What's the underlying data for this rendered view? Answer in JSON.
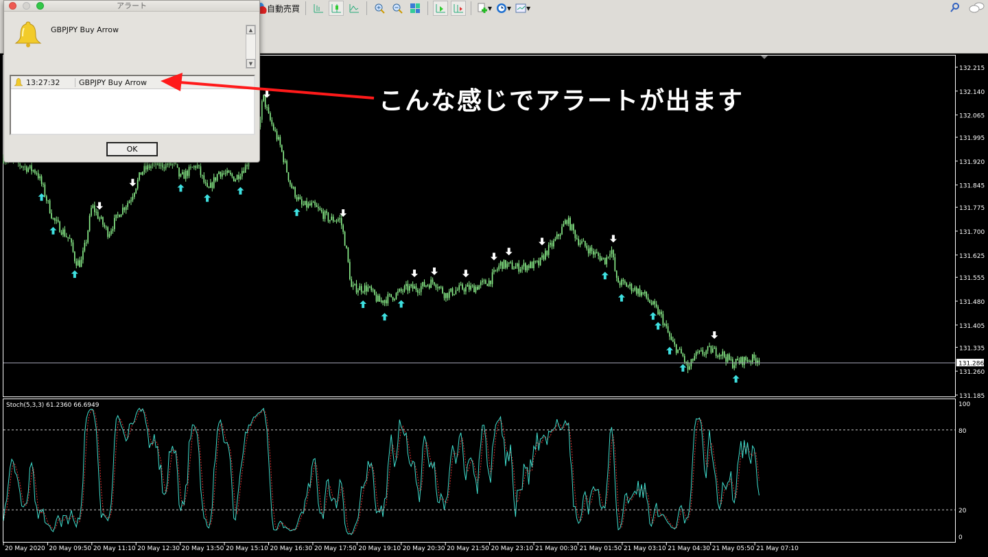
{
  "toolbar": {
    "auto_trade_label": "自動売買",
    "buttons": [
      "bar-chart",
      "candlestick-chart",
      "line-chart",
      "zoom-in",
      "zoom-out",
      "tile-windows",
      "chart-shift",
      "auto-scroll",
      "indicators",
      "periods",
      "templates"
    ]
  },
  "dialog": {
    "title": "アラート",
    "message": "GBPJPY Buy Arrow",
    "list": [
      {
        "time": "13:27:32",
        "text": "GBPJPY Buy Arrow"
      }
    ],
    "ok_label": "OK"
  },
  "annotation": {
    "text": "こんな感じでアラートが出ます",
    "arrow_color": "#ff1a1a"
  },
  "chart": {
    "symbol": "GBPJPY",
    "candle_color": "#8ef58e",
    "current_price": "131.286",
    "price_ticks": [
      "132.215",
      "132.140",
      "132.065",
      "131.995",
      "131.920",
      "131.845",
      "131.775",
      "131.700",
      "131.625",
      "131.555",
      "131.480",
      "131.405",
      "131.335",
      "131.260",
      "131.185"
    ],
    "time_ticks": [
      "20 May 2020",
      "20 May 09:50",
      "20 May 11:10",
      "20 May 12:30",
      "20 May 13:50",
      "20 May 15:10",
      "20 May 16:30",
      "20 May 17:50",
      "20 May 19:10",
      "20 May 20:30",
      "20 May 21:50",
      "20 May 23:10",
      "21 May 00:30",
      "21 May 01:50",
      "21 May 03:10",
      "21 May 04:30",
      "21 May 05:50",
      "21 May 07:10"
    ],
    "price_path": [
      [
        "20 08:30",
        131.93
      ],
      [
        "20 09:30",
        131.887
      ],
      [
        "20 09:40",
        131.844
      ],
      [
        "20 10:00",
        131.737
      ],
      [
        "20 10:30",
        131.672
      ],
      [
        "20 10:40",
        131.607
      ],
      [
        "20 10:50",
        131.597
      ],
      [
        "20 11:00",
        131.672
      ],
      [
        "20 11:10",
        131.78
      ],
      [
        "20 11:40",
        131.693
      ],
      [
        "20 12:00",
        131.758
      ],
      [
        "20 12:20",
        131.801
      ],
      [
        "20 12:40",
        131.887
      ],
      [
        "20 13:00",
        131.909
      ],
      [
        "20 13:40",
        131.909
      ],
      [
        "20 13:50",
        131.866
      ],
      [
        "20 14:20",
        131.909
      ],
      [
        "20 14:40",
        131.823
      ],
      [
        "20 15:00",
        131.887
      ],
      [
        "20 15:30",
        131.866
      ],
      [
        "20 15:50",
        131.909
      ],
      [
        "20 16:10",
        131.995
      ],
      [
        "20 16:20",
        132.125
      ],
      [
        "20 16:30",
        132.06
      ],
      [
        "20 16:50",
        131.974
      ],
      [
        "20 17:10",
        131.844
      ],
      [
        "20 17:30",
        131.78
      ],
      [
        "20 17:50",
        131.78
      ],
      [
        "20 18:20",
        131.737
      ],
      [
        "20 18:40",
        131.737
      ],
      [
        "20 18:50",
        131.65
      ],
      [
        "20 19:00",
        131.521
      ],
      [
        "20 19:30",
        131.521
      ],
      [
        "20 19:50",
        131.478
      ],
      [
        "20 20:20",
        131.5
      ],
      [
        "20 20:40",
        131.521
      ],
      [
        "20 21:00",
        131.521
      ],
      [
        "20 21:30",
        131.543
      ],
      [
        "20 21:50",
        131.5
      ],
      [
        "20 22:20",
        131.521
      ],
      [
        "20 22:40",
        131.521
      ],
      [
        "20 23:10",
        131.543
      ],
      [
        "20 23:30",
        131.597
      ],
      [
        "21 00:00",
        131.586
      ],
      [
        "21 00:40",
        131.597
      ],
      [
        "21 00:50",
        131.629
      ],
      [
        "21 01:10",
        131.672
      ],
      [
        "21 01:30",
        131.737
      ],
      [
        "21 01:50",
        131.672
      ],
      [
        "21 02:20",
        131.629
      ],
      [
        "21 02:40",
        131.607
      ],
      [
        "21 02:50",
        131.65
      ],
      [
        "21 03:00",
        131.543
      ],
      [
        "21 03:30",
        131.521
      ],
      [
        "21 03:50",
        131.5
      ],
      [
        "21 04:20",
        131.435
      ],
      [
        "21 04:40",
        131.349
      ],
      [
        "21 05:00",
        131.306
      ],
      [
        "21 05:10",
        131.262
      ],
      [
        "21 05:20",
        131.306
      ],
      [
        "21 05:50",
        131.327
      ],
      [
        "21 06:10",
        131.316
      ],
      [
        "21 06:30",
        131.284
      ],
      [
        "21 06:50",
        131.295
      ],
      [
        "21 07:20",
        131.301
      ]
    ],
    "buy_arrows": [
      "20 09:40",
      "20 10:00",
      "20 10:40",
      "20 13:50",
      "20 14:40",
      "20 15:40",
      "20 17:20",
      "20 19:20",
      "20 20:00",
      "20 20:30",
      "21 02:40",
      "21 03:10",
      "21 04:05",
      "21 04:15",
      "21 04:35",
      "21 05:00",
      "21 06:35"
    ],
    "sell_arrows": [
      "20 11:25",
      "20 12:23",
      "20 16:27",
      "20 18:46",
      "20 20:54",
      "20 21:29",
      "20 22:26",
      "20 23:19",
      "20 23:44",
      "21 00:44",
      "21 02:53",
      "21 05:57"
    ],
    "buy_arrow_color": "#3ee0e0",
    "sell_arrow_color": "#ffffff"
  },
  "stoch": {
    "label": "Stoch(5,3,3) 61.2360 66.6949",
    "levels": [
      "100",
      "80",
      "20",
      "0"
    ],
    "main_color": "#40e0d0",
    "signal_color": "#e03030"
  }
}
